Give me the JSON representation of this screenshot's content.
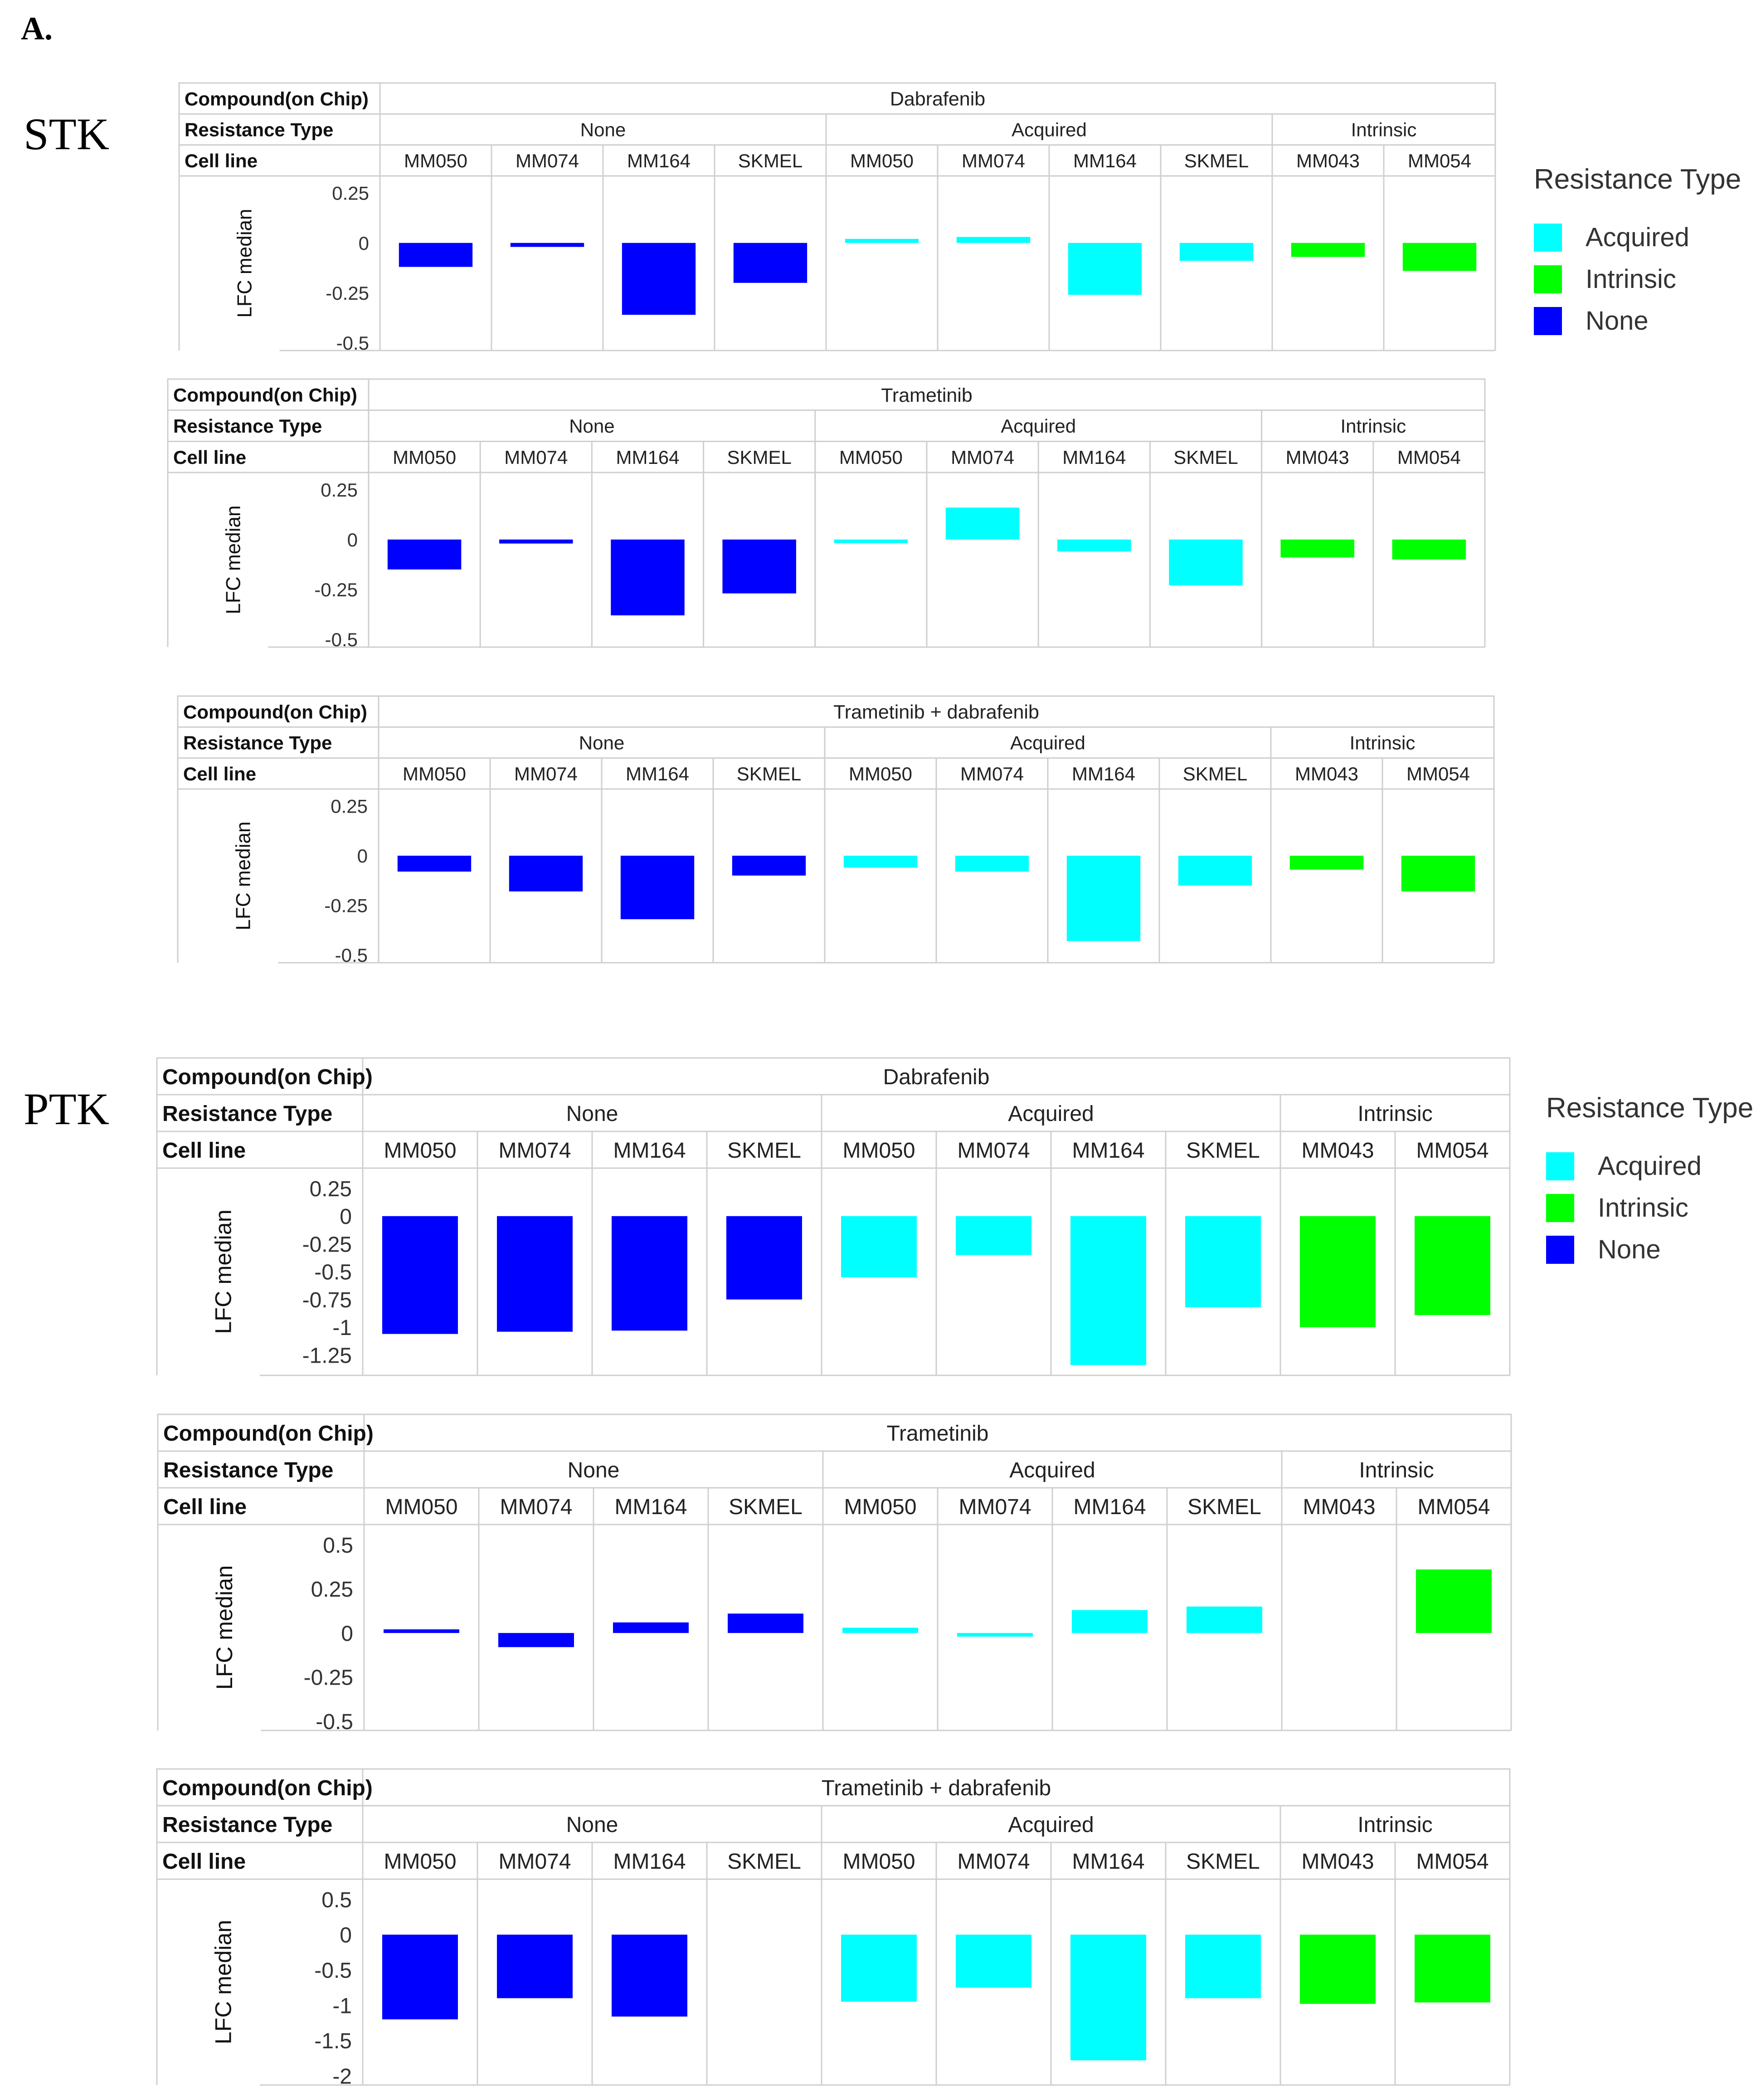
{
  "figure_label": "A.",
  "sections": [
    {
      "label": "STK"
    },
    {
      "label": "PTK"
    }
  ],
  "legend": {
    "title": "Resistance Type",
    "items": [
      {
        "label": "Acquired",
        "color": "#00FFFF"
      },
      {
        "label": "Intrinsic",
        "color": "#00FF00"
      },
      {
        "label": "None",
        "color": "#0000FF"
      }
    ]
  },
  "chart_data": [
    {
      "type": "bar",
      "section": "STK",
      "header_labels": {
        "compound": "Compound(on Chip)",
        "resistance": "Resistance Type",
        "cell_line": "Cell line"
      },
      "compound": "Dabrafenib",
      "groups": [
        {
          "name": "None",
          "count": 4
        },
        {
          "name": "Acquired",
          "count": 4
        },
        {
          "name": "Intrinsic",
          "count": 2
        }
      ],
      "categories": [
        "MM050",
        "MM074",
        "MM164",
        "SKMEL",
        "MM050",
        "MM074",
        "MM164",
        "SKMEL",
        "MM043",
        "MM054"
      ],
      "resistance": [
        "None",
        "None",
        "None",
        "None",
        "Acquired",
        "Acquired",
        "Acquired",
        "Acquired",
        "Intrinsic",
        "Intrinsic"
      ],
      "values": [
        -0.12,
        -0.02,
        -0.36,
        -0.2,
        0.02,
        0.03,
        -0.26,
        -0.09,
        -0.07,
        -0.14
      ],
      "ylabel": "LFC median",
      "ylim": [
        -0.5,
        0.25
      ],
      "yticks": [
        0.25,
        0,
        -0.25,
        -0.5
      ],
      "ytick_labels": [
        "0.25",
        "0",
        "-0.25",
        "-0.5"
      ]
    },
    {
      "type": "bar",
      "section": "STK",
      "header_labels": {
        "compound": "Compound(on Chip)",
        "resistance": "Resistance Type",
        "cell_line": "Cell line"
      },
      "compound": "Trametinib",
      "groups": [
        {
          "name": "None",
          "count": 4
        },
        {
          "name": "Acquired",
          "count": 4
        },
        {
          "name": "Intrinsic",
          "count": 2
        }
      ],
      "categories": [
        "MM050",
        "MM074",
        "MM164",
        "SKMEL",
        "MM050",
        "MM074",
        "MM164",
        "SKMEL",
        "MM043",
        "MM054"
      ],
      "resistance": [
        "None",
        "None",
        "None",
        "None",
        "Acquired",
        "Acquired",
        "Acquired",
        "Acquired",
        "Intrinsic",
        "Intrinsic"
      ],
      "values": [
        -0.15,
        -0.02,
        -0.38,
        -0.27,
        -0.01,
        0.16,
        -0.06,
        -0.23,
        -0.09,
        -0.1
      ],
      "ylabel": "LFC median",
      "ylim": [
        -0.5,
        0.25
      ],
      "yticks": [
        0.25,
        0,
        -0.25,
        -0.5
      ],
      "ytick_labels": [
        "0.25",
        "0",
        "-0.25",
        "-0.5"
      ]
    },
    {
      "type": "bar",
      "section": "STK",
      "header_labels": {
        "compound": "Compound(on Chip)",
        "resistance": "Resistance Type",
        "cell_line": "Cell line"
      },
      "compound": "Trametinib + dabrafenib",
      "groups": [
        {
          "name": "None",
          "count": 4
        },
        {
          "name": "Acquired",
          "count": 4
        },
        {
          "name": "Intrinsic",
          "count": 2
        }
      ],
      "categories": [
        "MM050",
        "MM074",
        "MM164",
        "SKMEL",
        "MM050",
        "MM074",
        "MM164",
        "SKMEL",
        "MM043",
        "MM054"
      ],
      "resistance": [
        "None",
        "None",
        "None",
        "None",
        "Acquired",
        "Acquired",
        "Acquired",
        "Acquired",
        "Intrinsic",
        "Intrinsic"
      ],
      "values": [
        -0.08,
        -0.18,
        -0.32,
        -0.1,
        -0.06,
        -0.08,
        -0.43,
        -0.15,
        -0.07,
        -0.18
      ],
      "ylabel": "LFC median",
      "ylim": [
        -0.5,
        0.25
      ],
      "yticks": [
        0.25,
        0,
        -0.25,
        -0.5
      ],
      "ytick_labels": [
        "0.25",
        "0",
        "-0.25",
        "-0.5"
      ]
    },
    {
      "type": "bar",
      "section": "PTK",
      "header_labels": {
        "compound": "Compound(on Chip)",
        "resistance": "Resistance Type",
        "cell_line": "Cell line"
      },
      "compound": "Dabrafenib",
      "groups": [
        {
          "name": "None",
          "count": 4
        },
        {
          "name": "Acquired",
          "count": 4
        },
        {
          "name": "Intrinsic",
          "count": 2
        }
      ],
      "categories": [
        "MM050",
        "MM074",
        "MM164",
        "SKMEL",
        "MM050",
        "MM074",
        "MM164",
        "SKMEL",
        "MM043",
        "MM054"
      ],
      "resistance": [
        "None",
        "None",
        "None",
        "None",
        "Acquired",
        "Acquired",
        "Acquired",
        "Acquired",
        "Intrinsic",
        "Intrinsic"
      ],
      "values": [
        -1.06,
        -1.04,
        -1.03,
        -0.75,
        -0.55,
        -0.35,
        -1.34,
        -0.82,
        -1.0,
        -0.89
      ],
      "ylabel": "LFC median",
      "ylim": [
        -1.35,
        0.25
      ],
      "yticks": [
        0.25,
        0,
        -0.25,
        -0.5,
        -0.75,
        -1,
        -1.25
      ],
      "ytick_labels": [
        "0.25",
        "0",
        "-0.25",
        "-0.5",
        "-0.75",
        "-1",
        "-1.25"
      ]
    },
    {
      "type": "bar",
      "section": "PTK",
      "header_labels": {
        "compound": "Compound(on Chip)",
        "resistance": "Resistance Type",
        "cell_line": "Cell line"
      },
      "compound": "Trametinib",
      "groups": [
        {
          "name": "None",
          "count": 4
        },
        {
          "name": "Acquired",
          "count": 4
        },
        {
          "name": "Intrinsic",
          "count": 2
        }
      ],
      "categories": [
        "MM050",
        "MM074",
        "MM164",
        "SKMEL",
        "MM050",
        "MM074",
        "MM164",
        "SKMEL",
        "MM043",
        "MM054"
      ],
      "resistance": [
        "None",
        "None",
        "None",
        "None",
        "Acquired",
        "Acquired",
        "Acquired",
        "Acquired",
        "Intrinsic",
        "Intrinsic"
      ],
      "values": [
        0.02,
        -0.08,
        0.06,
        0.11,
        0.03,
        -0.01,
        0.13,
        0.15,
        null,
        0.36
      ],
      "ylabel": "LFC median",
      "ylim": [
        -0.5,
        0.5
      ],
      "yticks": [
        0.5,
        0.25,
        0,
        -0.25,
        -0.5
      ],
      "ytick_labels": [
        "0.5",
        "0.25",
        "0",
        "-0.25",
        "-0.5"
      ]
    },
    {
      "type": "bar",
      "section": "PTK",
      "header_labels": {
        "compound": "Compound(on Chip)",
        "resistance": "Resistance Type",
        "cell_line": "Cell line"
      },
      "compound": "Trametinib + dabrafenib",
      "groups": [
        {
          "name": "None",
          "count": 4
        },
        {
          "name": "Acquired",
          "count": 4
        },
        {
          "name": "Intrinsic",
          "count": 2
        }
      ],
      "categories": [
        "MM050",
        "MM074",
        "MM164",
        "SKMEL",
        "MM050",
        "MM074",
        "MM164",
        "SKMEL",
        "MM043",
        "MM054"
      ],
      "resistance": [
        "None",
        "None",
        "None",
        "None",
        "Acquired",
        "Acquired",
        "Acquired",
        "Acquired",
        "Intrinsic",
        "Intrinsic"
      ],
      "values": [
        -1.2,
        -0.9,
        -1.16,
        null,
        -0.95,
        -0.75,
        -1.78,
        -0.9,
        -0.98,
        -0.96
      ],
      "ylabel": "LFC median",
      "ylim": [
        -2,
        0.5
      ],
      "yticks": [
        0.5,
        0,
        -0.5,
        -1,
        -1.5,
        -2
      ],
      "ytick_labels": [
        "0.5",
        "0",
        "-0.5",
        "-1",
        "-1.5",
        "-2"
      ]
    }
  ]
}
